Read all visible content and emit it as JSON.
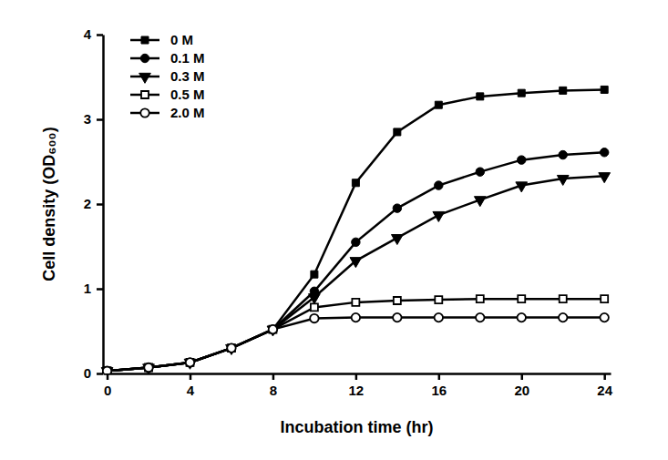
{
  "chart_data": {
    "type": "line",
    "x_label": "Incubation time (hr)",
    "y_label": "Cell density (OD₆₀₀)",
    "x": [
      0,
      2,
      4,
      6,
      8,
      10,
      12,
      14,
      16,
      18,
      20,
      22,
      24
    ],
    "xlim": [
      -0.2,
      24.3
    ],
    "xticks": [
      0,
      4,
      8,
      12,
      16,
      20,
      24
    ],
    "ylim": [
      0,
      4
    ],
    "yticks": [
      0,
      1,
      2,
      3,
      4
    ],
    "legend": "upper-left",
    "grid": false,
    "series": [
      {
        "name": "0 M",
        "color": "#000000",
        "marker": "square",
        "values": [
          0.03,
          0.07,
          0.13,
          0.3,
          0.52,
          1.17,
          2.25,
          2.85,
          3.17,
          3.27,
          3.31,
          3.34,
          3.35
        ]
      },
      {
        "name": "0.1 M",
        "color": "#000000",
        "marker": "circle",
        "values": [
          0.03,
          0.07,
          0.13,
          0.3,
          0.52,
          0.97,
          1.55,
          1.95,
          2.22,
          2.38,
          2.52,
          2.58,
          2.61
        ]
      },
      {
        "name": "0.3 M",
        "color": "#000000",
        "marker": "triangle-down",
        "values": [
          0.03,
          0.07,
          0.13,
          0.3,
          0.52,
          0.9,
          1.33,
          1.6,
          1.87,
          2.05,
          2.22,
          2.3,
          2.33
        ]
      },
      {
        "name": "0.5 M",
        "color": "#000000",
        "marker": "square-open",
        "values": [
          0.03,
          0.07,
          0.13,
          0.3,
          0.52,
          0.78,
          0.84,
          0.86,
          0.87,
          0.88,
          0.88,
          0.88,
          0.88
        ]
      },
      {
        "name": "2.0 M",
        "color": "#000000",
        "marker": "circle-open",
        "values": [
          0.03,
          0.07,
          0.13,
          0.3,
          0.52,
          0.65,
          0.66,
          0.66,
          0.66,
          0.66,
          0.66,
          0.66,
          0.66
        ]
      }
    ]
  }
}
